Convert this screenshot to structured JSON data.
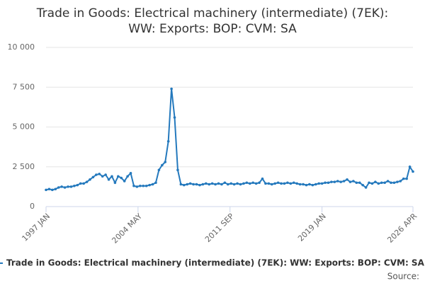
{
  "chart_data": {
    "type": "line",
    "title": [
      "Trade in Goods: Electrical machinery (intermediate) (7EK):",
      "WW: Exports: BOP: CVM: SA"
    ],
    "x": [
      1997,
      1997.25,
      1997.5,
      1997.75,
      1998,
      1998.25,
      1998.5,
      1998.75,
      1999,
      1999.25,
      1999.5,
      1999.75,
      2000,
      2000.25,
      2000.5,
      2000.75,
      2001,
      2001.25,
      2001.5,
      2001.75,
      2002,
      2002.25,
      2002.5,
      2002.75,
      2003,
      2003.25,
      2003.5,
      2003.75,
      2004,
      2004.25,
      2004.5,
      2004.75,
      2005,
      2005.25,
      2005.5,
      2005.75,
      2006,
      2006.25,
      2006.5,
      2006.75,
      2007,
      2007.25,
      2007.5,
      2007.75,
      2008,
      2008.25,
      2008.5,
      2008.75,
      2009,
      2009.25,
      2009.5,
      2009.75,
      2010,
      2010.25,
      2010.5,
      2010.75,
      2011,
      2011.25,
      2011.5,
      2011.75,
      2012,
      2012.25,
      2012.5,
      2012.75,
      2013,
      2013.25,
      2013.5,
      2013.75,
      2014,
      2014.25,
      2014.5,
      2014.75,
      2015,
      2015.25,
      2015.5,
      2015.75,
      2016,
      2016.25,
      2016.5,
      2016.75,
      2017,
      2017.25,
      2017.5,
      2017.75,
      2018,
      2018.25,
      2018.5,
      2018.75,
      2019,
      2019.25,
      2019.5,
      2019.75,
      2020,
      2020.25,
      2020.5,
      2020.75,
      2021,
      2021.25,
      2021.5,
      2021.75,
      2022,
      2022.25,
      2022.5,
      2022.75,
      2023,
      2023.25,
      2023.5,
      2023.75,
      2024,
      2024.25,
      2024.5,
      2024.75,
      2025,
      2025.25,
      2025.5,
      2025.75,
      2026,
      2026.25
    ],
    "series": [
      {
        "name": "Trade in Goods: Electrical machinery (intermediate) (7EK): WW: Exports: BOP: CVM: SA",
        "color": "#2479bd",
        "values": [
          1050,
          1100,
          1050,
          1100,
          1200,
          1250,
          1200,
          1250,
          1250,
          1300,
          1350,
          1450,
          1450,
          1550,
          1700,
          1850,
          2000,
          2050,
          1900,
          2000,
          1700,
          1900,
          1500,
          1900,
          1800,
          1600,
          1900,
          2100,
          1300,
          1250,
          1300,
          1300,
          1300,
          1350,
          1400,
          1500,
          2300,
          2600,
          2800,
          4100,
          7400,
          5600,
          2300,
          1400,
          1350,
          1400,
          1450,
          1400,
          1400,
          1350,
          1400,
          1450,
          1400,
          1450,
          1400,
          1450,
          1400,
          1500,
          1400,
          1450,
          1400,
          1450,
          1400,
          1450,
          1500,
          1450,
          1500,
          1450,
          1500,
          1750,
          1450,
          1450,
          1400,
          1450,
          1500,
          1450,
          1450,
          1500,
          1450,
          1500,
          1450,
          1400,
          1400,
          1350,
          1400,
          1350,
          1400,
          1450,
          1450,
          1500,
          1500,
          1550,
          1550,
          1600,
          1550,
          1600,
          1700,
          1550,
          1600,
          1500,
          1500,
          1350,
          1200,
          1500,
          1450,
          1550,
          1450,
          1500,
          1500,
          1600,
          1500,
          1500,
          1550,
          1600,
          1750,
          1750,
          2500,
          2200
        ]
      }
    ],
    "xlim": [
      1997,
      2026.25
    ],
    "xticks": [
      {
        "value": 1997,
        "label": "1997 JAN"
      },
      {
        "value": 2004.333,
        "label": "2004 MAY"
      },
      {
        "value": 2011.667,
        "label": "2011 SEP"
      },
      {
        "value": 2019,
        "label": "2019 JAN"
      },
      {
        "value": 2026.25,
        "label": "2026 APR"
      }
    ],
    "ylim": [
      0,
      10000
    ],
    "yticks": [
      0,
      {
        "value": 2500,
        "label": "2 500"
      },
      {
        "value": 5000,
        "label": "5 000"
      },
      {
        "value": 7500,
        "label": "7 500"
      },
      {
        "value": 10000,
        "label": "10 000"
      }
    ],
    "grid": true,
    "source_label": "Source:"
  }
}
